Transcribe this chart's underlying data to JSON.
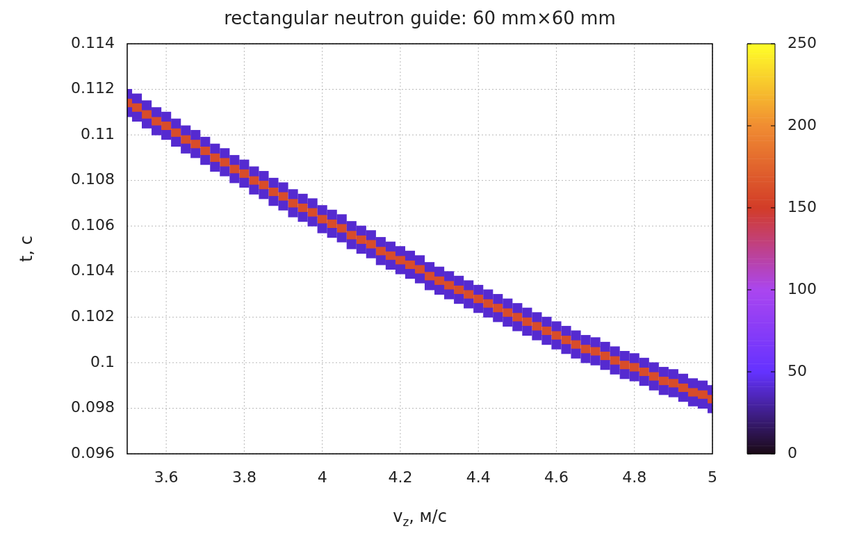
{
  "chart_data": {
    "type": "scatter",
    "title": "rectangular neutron guide: 60 mm×60 mm",
    "xlabel": "v$_{z}$, м/с",
    "ylabel": "t, с",
    "marker": "square",
    "grid": true,
    "x": [
      3.5,
      3.525,
      3.55,
      3.575,
      3.6,
      3.625,
      3.65,
      3.675,
      3.7,
      3.725,
      3.75,
      3.775,
      3.8,
      3.825,
      3.85,
      3.875,
      3.9,
      3.925,
      3.95,
      3.975,
      4,
      4.025,
      4.05,
      4.075,
      4.1,
      4.125,
      4.15,
      4.175,
      4.2,
      4.225,
      4.25,
      4.275,
      4.3,
      4.325,
      4.35,
      4.375,
      4.4,
      4.425,
      4.45,
      4.475,
      4.5,
      4.525,
      4.55,
      4.575,
      4.6,
      4.625,
      4.65,
      4.675,
      4.7,
      4.725,
      4.75,
      4.775,
      4.8,
      4.825,
      4.85,
      4.875,
      4.9,
      4.925,
      4.95,
      4.975,
      5
    ],
    "series": [
      {
        "values": [
          0.1118,
          0.1116,
          0.1113,
          0.111,
          0.1108,
          0.1105,
          0.1102,
          0.11,
          0.1097,
          0.1094,
          0.1092,
          0.1089,
          0.1087,
          0.1084,
          0.1082,
          0.1079,
          0.1077,
          0.1074,
          0.1072,
          0.107,
          0.1067,
          0.1065,
          0.1063,
          0.106,
          0.1058,
          0.1056,
          0.1053,
          0.1051,
          0.1049,
          0.1047,
          0.1045,
          0.1042,
          0.104,
          0.1038,
          0.1036,
          0.1034,
          0.1032,
          0.103,
          0.1028,
          0.1026,
          0.1024,
          0.1022,
          0.102,
          0.1018,
          0.1016,
          0.1014,
          0.1012,
          0.101,
          0.1009,
          0.1007,
          0.1005,
          0.1003,
          0.1002,
          0.1,
          0.0998,
          0.0996,
          0.0995,
          0.0993,
          0.0991,
          0.099,
          0.0988
        ],
        "cvalues": [
          40,
          40,
          40,
          40,
          40,
          40,
          40,
          40,
          40,
          40,
          40,
          40,
          40,
          40,
          40,
          40,
          40,
          40,
          40,
          40,
          40,
          40,
          40,
          40,
          40,
          40,
          40,
          40,
          40,
          40,
          40,
          40,
          40,
          40,
          40,
          40,
          40,
          40,
          40,
          40,
          40,
          40,
          40,
          40,
          40,
          40,
          40,
          40,
          40,
          40,
          40,
          40,
          40,
          40,
          40,
          40,
          40,
          40,
          40,
          40,
          40
        ]
      },
      {
        "values": [
          0.111,
          0.1108,
          0.1105,
          0.1102,
          0.11,
          0.1097,
          0.1094,
          0.1092,
          0.1089,
          0.1086,
          0.1084,
          0.1081,
          0.1079,
          0.1076,
          0.1074,
          0.1071,
          0.1069,
          0.1066,
          0.1064,
          0.1062,
          0.1059,
          0.1057,
          0.1055,
          0.1052,
          0.105,
          0.1048,
          0.1045,
          0.1043,
          0.1041,
          0.1039,
          0.1037,
          0.1034,
          0.1032,
          0.103,
          0.1028,
          0.1026,
          0.1024,
          0.1022,
          0.102,
          0.1018,
          0.1016,
          0.1014,
          0.1012,
          0.101,
          0.1008,
          0.1006,
          0.1004,
          0.1002,
          0.1001,
          0.0999,
          0.0997,
          0.0995,
          0.0994,
          0.0992,
          0.099,
          0.0988,
          0.0987,
          0.0985,
          0.0983,
          0.0982,
          0.098
        ],
        "cvalues": [
          40,
          40,
          40,
          40,
          40,
          40,
          40,
          40,
          40,
          40,
          40,
          40,
          40,
          40,
          40,
          40,
          40,
          40,
          40,
          40,
          40,
          40,
          40,
          40,
          40,
          40,
          40,
          40,
          40,
          40,
          40,
          40,
          40,
          40,
          40,
          40,
          40,
          40,
          40,
          40,
          40,
          40,
          40,
          40,
          40,
          40,
          40,
          40,
          40,
          40,
          40,
          40,
          40,
          40,
          40,
          40,
          40,
          40,
          40,
          40,
          40
        ]
      },
      {
        "values": [
          0.1114,
          0.1112,
          0.1109,
          0.1106,
          0.1104,
          0.1101,
          0.1098,
          0.1096,
          0.1093,
          0.109,
          0.1088,
          0.1085,
          0.1083,
          0.108,
          0.1078,
          0.1075,
          0.1073,
          0.107,
          0.1068,
          0.1066,
          0.1063,
          0.1061,
          0.1059,
          0.1056,
          0.1054,
          0.1052,
          0.1049,
          0.1047,
          0.1045,
          0.1043,
          0.1041,
          0.1038,
          0.1036,
          0.1034,
          0.1032,
          0.103,
          0.1028,
          0.1026,
          0.1024,
          0.1022,
          0.102,
          0.1018,
          0.1016,
          0.1014,
          0.1012,
          0.101,
          0.1008,
          0.1006,
          0.1005,
          0.1003,
          0.1001,
          0.0999,
          0.0998,
          0.0996,
          0.0994,
          0.0992,
          0.0991,
          0.0989,
          0.0987,
          0.0986,
          0.0984
        ],
        "cvalues": [
          160,
          160,
          160,
          160,
          160,
          160,
          160,
          160,
          160,
          160,
          160,
          160,
          160,
          160,
          160,
          160,
          160,
          160,
          160,
          160,
          160,
          160,
          160,
          160,
          160,
          160,
          160,
          160,
          160,
          160,
          160,
          160,
          160,
          160,
          160,
          160,
          160,
          160,
          160,
          160,
          160,
          160,
          160,
          160,
          160,
          160,
          160,
          160,
          160,
          160,
          160,
          160,
          160,
          160,
          160,
          160,
          160,
          160,
          160,
          160,
          160
        ]
      }
    ],
    "xlim": [
      3.5,
      5
    ],
    "xticks": [
      3.6,
      3.8,
      4,
      4.2,
      4.4,
      4.6,
      4.8,
      5
    ],
    "ylim": [
      0.096,
      0.114
    ],
    "yticks": [
      0.096,
      0.098,
      0.1,
      0.102,
      0.104,
      0.106,
      0.108,
      0.11,
      0.112,
      0.114
    ],
    "clim": [
      0,
      250
    ],
    "cticks": [
      0,
      50,
      100,
      150,
      200,
      250
    ]
  }
}
